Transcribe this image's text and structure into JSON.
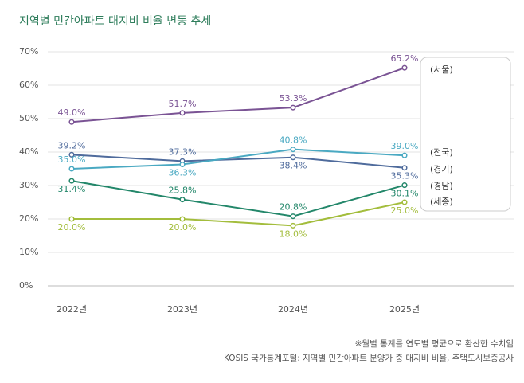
{
  "chart_data": {
    "type": "line",
    "title": "지역별 민간아파트 대지비 비율 변동 추세",
    "categories": [
      "2022년",
      "2023년",
      "2024년",
      "2025년"
    ],
    "series": [
      {
        "name": "(서울)",
        "color": "#7a5394",
        "values": [
          49.0,
          51.7,
          53.3,
          65.2
        ],
        "value_labels": [
          "49.0%",
          "51.7%",
          "53.3%",
          "65.2%"
        ]
      },
      {
        "name": "(전국)",
        "color": "#4f6b9c",
        "values": [
          39.2,
          37.3,
          38.4,
          35.3
        ],
        "value_labels": [
          "39.2%",
          "37.3%",
          "38.4%",
          "35.3%"
        ]
      },
      {
        "name": "(경기)",
        "color": "#4aa9c2",
        "values": [
          35.0,
          36.3,
          40.8,
          39.0
        ],
        "value_labels": [
          "35.0%",
          "36.3%",
          "40.8%",
          "39.0%"
        ]
      },
      {
        "name": "(경남)",
        "color": "#23876a",
        "values": [
          31.4,
          25.8,
          20.8,
          30.1
        ],
        "value_labels": [
          "31.4%",
          "25.8%",
          "20.8%",
          "30.1%"
        ]
      },
      {
        "name": "(세종)",
        "color": "#a3bd3c",
        "values": [
          20.0,
          20.0,
          18.0,
          25.0
        ],
        "value_labels": [
          "20.0%",
          "20.0%",
          "18.0%",
          "25.0%"
        ]
      }
    ],
    "ylim": [
      0,
      70
    ],
    "yticks": [
      {
        "value": 0,
        "label": "0%"
      },
      {
        "value": 10,
        "label": "10%"
      },
      {
        "value": 20,
        "label": "20%"
      },
      {
        "value": 30,
        "label": "30%"
      },
      {
        "value": 40,
        "label": "40%"
      },
      {
        "value": 50,
        "label": "50%"
      },
      {
        "value": 60,
        "label": "60%"
      },
      {
        "value": 70,
        "label": "70%"
      }
    ],
    "grid": true,
    "legend": "right",
    "notes": [
      "※월별 통계를 연도별 평균으로 환산한 수치임",
      "KOSIS 국가통계포털: 지역별 민간아파트 분양가 중 대지비 비율, 주택도시보증공사"
    ]
  }
}
